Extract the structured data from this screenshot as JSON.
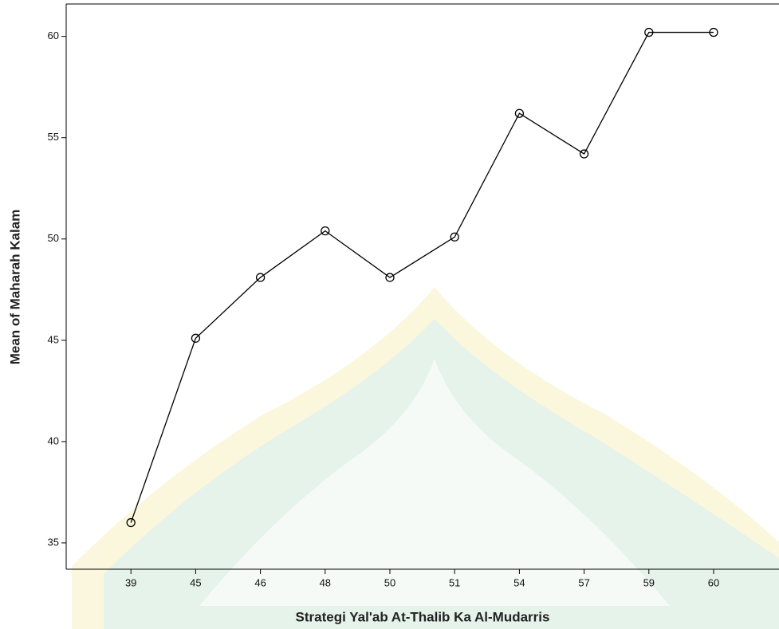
{
  "chart_data": {
    "type": "line",
    "x_label": "Strategi Yal'ab At-Thalib Ka Al-Mudarris",
    "y_label": "Mean of Maharah Kalam",
    "categories": [
      "39",
      "45",
      "46",
      "48",
      "50",
      "51",
      "54",
      "57",
      "59",
      "60"
    ],
    "values": [
      36,
      45.1,
      48.1,
      50.4,
      48.1,
      50.1,
      56.2,
      54.2,
      60.2,
      60.2
    ],
    "color": "#000000",
    "ylim": [
      33.7,
      61.6
    ],
    "yticks": [
      35,
      40,
      45,
      50,
      55,
      60
    ],
    "grid": false
  }
}
